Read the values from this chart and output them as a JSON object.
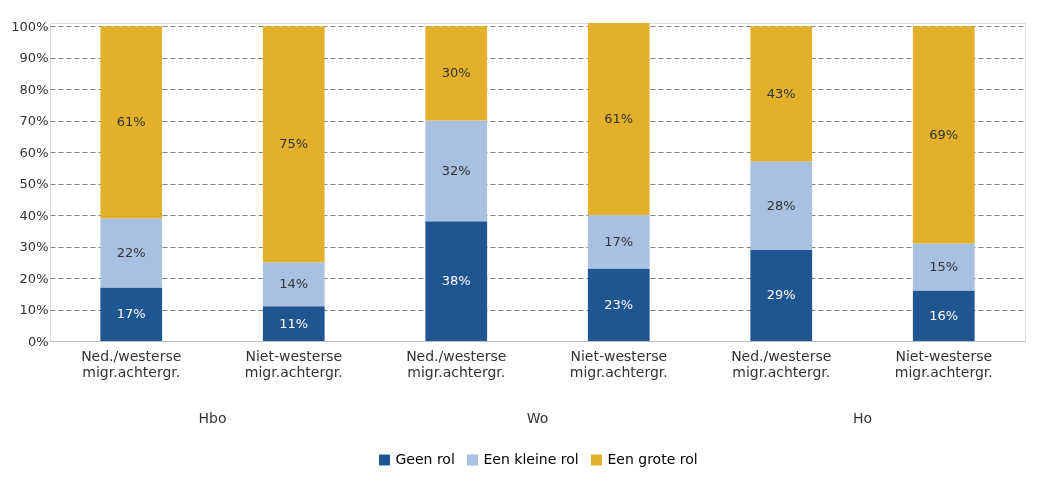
{
  "chart_data": {
    "type": "bar",
    "stacked": true,
    "categories": [
      "Ned./westerse migr.achtergr.",
      "Niet-westerse migr.achtergr.",
      "Ned./westerse migr.achtergr.",
      "Niet-westerse migr.achtergr.",
      "Ned./westerse migr.achtergr.",
      "Niet-westerse migr.achtergr."
    ],
    "series": [
      {
        "name": "Geen rol",
        "color": "#1f5591",
        "values": [
          17,
          11,
          38,
          23,
          29,
          16
        ],
        "value_labels": [
          "17%",
          "11%",
          "38%",
          "23%",
          "29%",
          "16%"
        ]
      },
      {
        "name": "Een kleine rol",
        "color": "#a8c1e0",
        "values": [
          22,
          14,
          32,
          17,
          28,
          15
        ],
        "value_labels": [
          "22%",
          "14%",
          "32%",
          "17%",
          "28%",
          "15%"
        ]
      },
      {
        "name": "Een grote rol",
        "color": "#e1b12c",
        "values": [
          61,
          75,
          30,
          61,
          43,
          69
        ],
        "value_labels": [
          "61%",
          "75%",
          "30%",
          "61%",
          "43%",
          "69%"
        ]
      }
    ],
    "annotations": [
      "Hbo",
      "Wo",
      "Ho"
    ],
    "ylim": [
      0,
      101
    ],
    "yticks": [
      {
        "value": 0,
        "label": "0%"
      },
      {
        "value": 10,
        "label": "10%"
      },
      {
        "value": 20,
        "label": "20%"
      },
      {
        "value": 30,
        "label": "30%"
      },
      {
        "value": 40,
        "label": "40%"
      },
      {
        "value": 50,
        "label": "50%"
      },
      {
        "value": 60,
        "label": "60%"
      },
      {
        "value": 70,
        "label": "70%"
      },
      {
        "value": 80,
        "label": "80%"
      },
      {
        "value": 90,
        "label": "90%"
      },
      {
        "value": 100,
        "label": "100%"
      }
    ],
    "grid": "y",
    "legend": "bottom"
  }
}
